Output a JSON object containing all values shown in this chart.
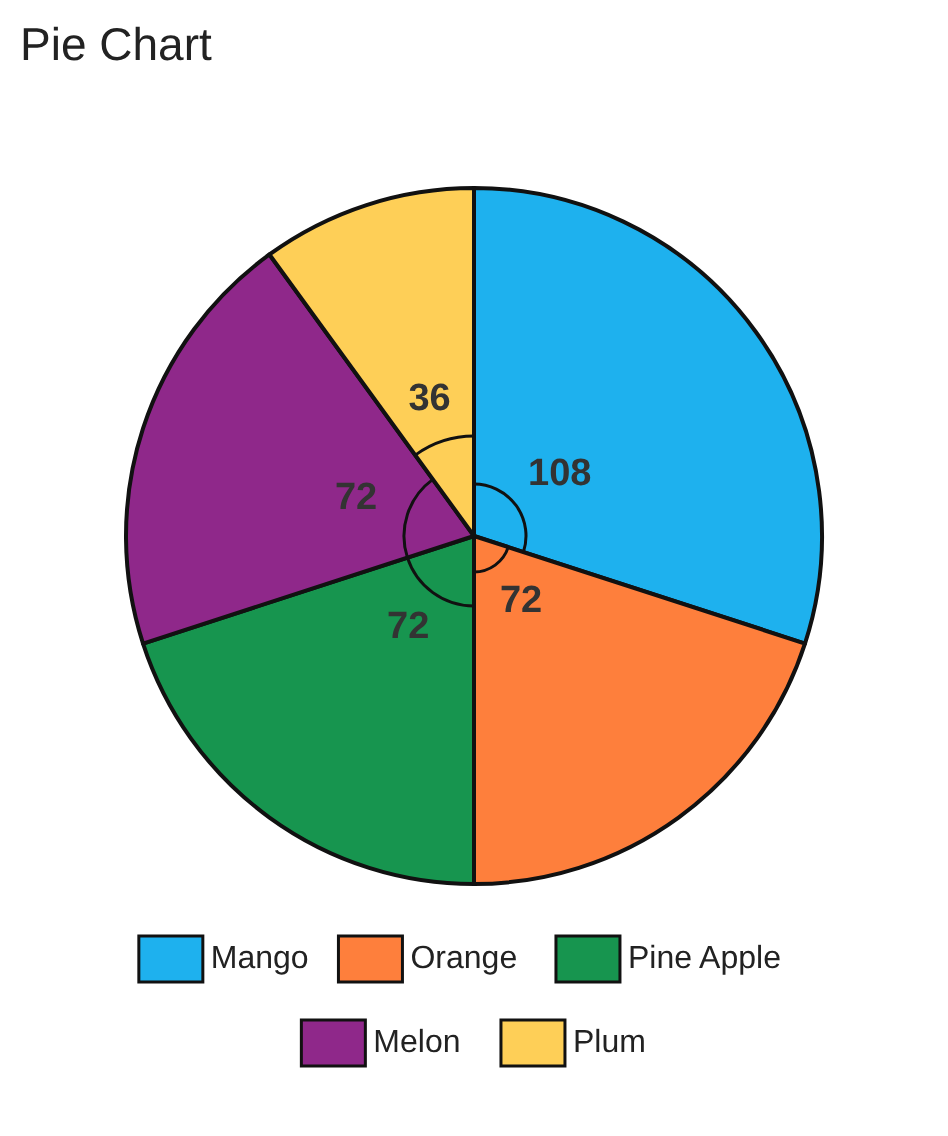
{
  "chart_data": {
    "type": "pie",
    "title": "Pie Chart",
    "categories": [
      "Mango",
      "Orange",
      "Pine Apple",
      "Melon",
      "Plum"
    ],
    "values": [
      108,
      72,
      72,
      72,
      36
    ],
    "colors": [
      "#1eb1ee",
      "#fe7f3c",
      "#17954f",
      "#8f288a",
      "#fecf57"
    ],
    "data_labels": true,
    "legend": "bottom"
  }
}
